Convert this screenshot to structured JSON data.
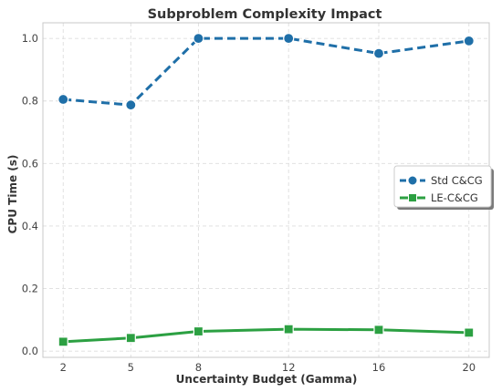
{
  "chart_data": {
    "type": "line",
    "title": "Subproblem Complexity Impact",
    "xlabel": "Uncertainty Budget (Gamma)",
    "ylabel": "CPU Time (s)",
    "x": [
      2,
      5,
      8,
      12,
      16,
      20
    ],
    "x_ticks": [
      "2",
      "5",
      "8",
      "12",
      "16",
      "20"
    ],
    "y_ticks": [
      0.0,
      0.2,
      0.4,
      0.6,
      0.8,
      1.0
    ],
    "y_tick_labels": [
      "0.0",
      "0.2",
      "0.4",
      "0.6",
      "0.8",
      "1.0"
    ],
    "xlim": [
      1.1,
      20.9
    ],
    "ylim": [
      -0.02,
      1.05
    ],
    "grid": true,
    "legend_position": "center-right",
    "series": [
      {
        "name": "Std C&CG",
        "values": [
          0.805,
          0.787,
          1.0,
          1.0,
          0.952,
          0.992
        ],
        "color": "#1f6fa8",
        "line_style": "dashed",
        "marker": "circle"
      },
      {
        "name": "LE-C&CG",
        "values": [
          0.03,
          0.042,
          0.063,
          0.07,
          0.068,
          0.059
        ],
        "color": "#2ca042",
        "line_style": "solid",
        "marker": "square"
      }
    ]
  }
}
